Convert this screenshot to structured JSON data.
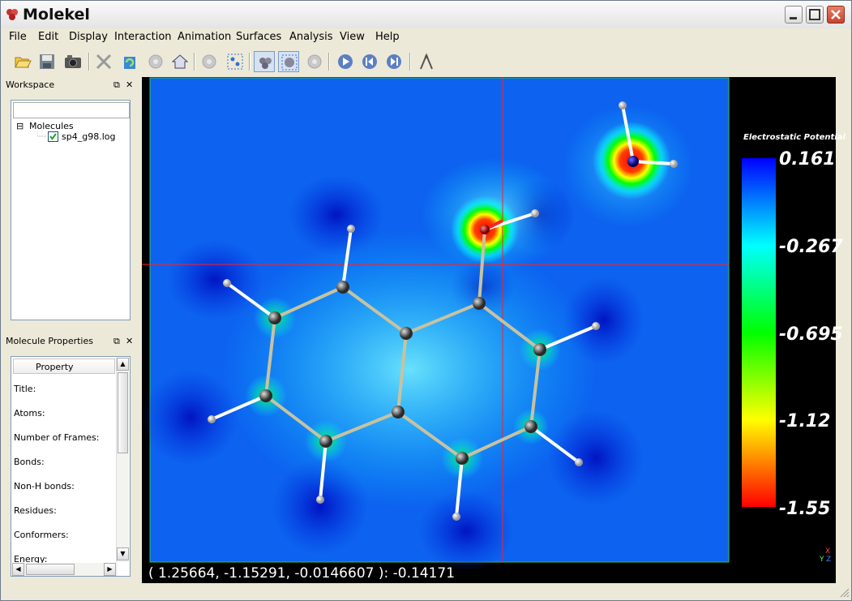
{
  "window": {
    "title": "Molekel"
  },
  "menu": [
    "File",
    "Edit",
    "Display",
    "Interaction",
    "Animation",
    "Surfaces",
    "Analysis",
    "View",
    "Help"
  ],
  "toolbar": {
    "icons": [
      "open-icon",
      "save-icon",
      "camera-icon",
      "delete-icon",
      "recycle-icon",
      "disabled-gear-icon",
      "home-icon",
      "disabled-gear-icon",
      "selection-icon",
      "view-select-icon",
      "view-center-icon",
      "disabled-gear-icon",
      "play-icon",
      "rewind-icon",
      "forward-icon",
      "measure-icon"
    ]
  },
  "workspace": {
    "title": "Workspace",
    "tree_root": "Molecules",
    "file": "sp4_g98.log",
    "file_checked": true
  },
  "properties": {
    "title": "Molecule Properties",
    "header": "Property",
    "rows": [
      "Title:",
      "Atoms:",
      "Number of Frames:",
      "Bonds:",
      "Non-H bonds:",
      "Residues:",
      "Conformers:",
      "Energy:"
    ]
  },
  "viewer": {
    "coordinate_readout": "( 1.25664, -1.15291, -0.0146607 ): -0.14171",
    "legend": {
      "title": "Electrostatic Potential",
      "labels": [
        "0.161",
        "-0.267",
        "-0.695",
        "-1.12",
        "-1.55"
      ],
      "colors": [
        "#0000ff",
        "#00ffff",
        "#00ff00",
        "#ffff00",
        "#ff0000"
      ]
    },
    "axis_glyph": "X Y Z"
  },
  "colors": {
    "plane_base": "#0a55ee",
    "crosshair": "#ff2020",
    "bond": "#c0bba0"
  }
}
